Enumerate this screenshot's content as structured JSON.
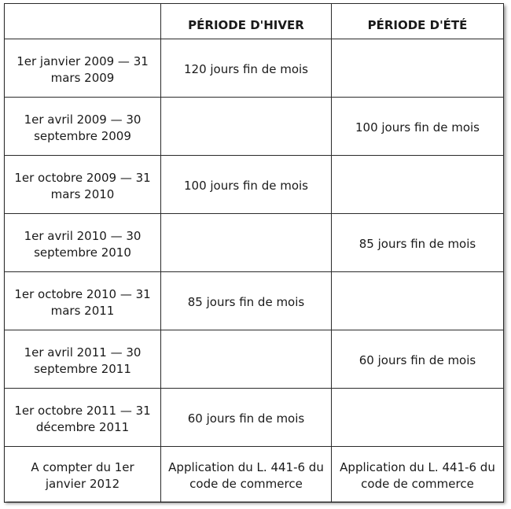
{
  "header": {
    "col1": "",
    "col2": "PÉRIODE D'HIVER",
    "col3": "PÉRIODE D'ÉTÉ"
  },
  "rows": [
    {
      "period": "1er janvier 2009 — 31 mars 2009",
      "winter": "120 jours fin de mois",
      "summer": ""
    },
    {
      "period": "1er avril 2009 — 30 septembre 2009",
      "winter": "",
      "summer": "100 jours fin de mois"
    },
    {
      "period": "1er octobre 2009 — 31 mars 2010",
      "winter": "100 jours fin de mois",
      "summer": ""
    },
    {
      "period": "1er avril 2010 — 30 septembre 2010",
      "winter": "",
      "summer": "85 jours fin de mois"
    },
    {
      "period": "1er octobre 2010 — 31 mars 2011",
      "winter": "85 jours fin de mois",
      "summer": ""
    },
    {
      "period": "1er avril 2011 — 30 septembre 2011",
      "winter": "",
      "summer": "60 jours fin de mois"
    },
    {
      "period": "1er octobre 2011 — 31 décembre 2011",
      "winter": "60 jours fin de mois",
      "summer": ""
    },
    {
      "period": "A compter du 1er janvier 2012",
      "winter": "Application du L. 441-6 du code de commerce",
      "summer": "Application du L. 441-6 du code de commerce"
    }
  ]
}
